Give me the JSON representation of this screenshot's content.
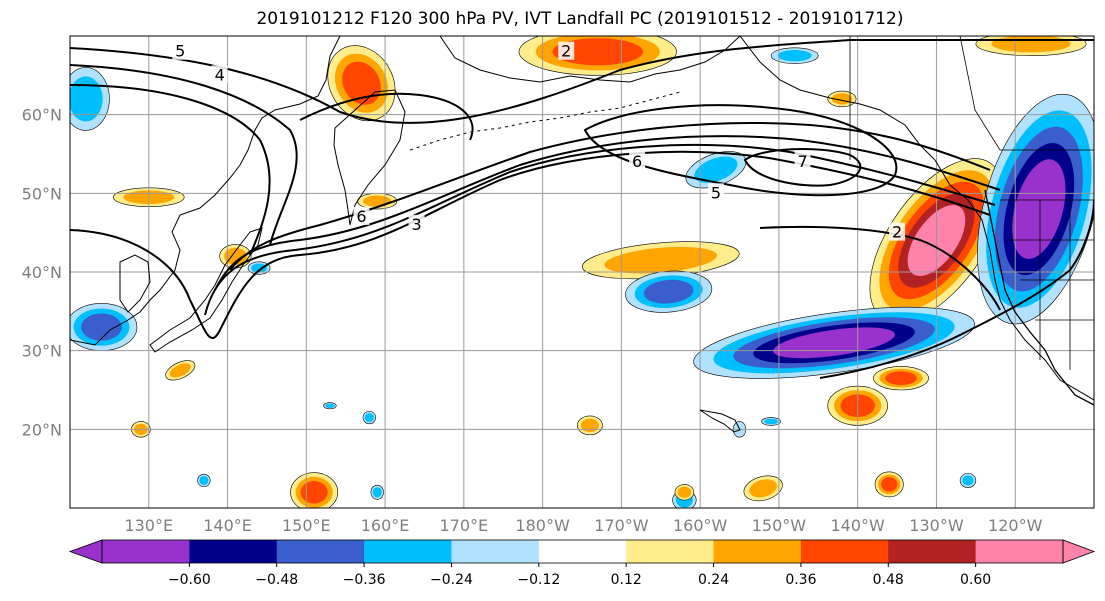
{
  "title": "2019101212 F120 300 hPa PV, IVT Landfall PC (2019101512 - 2019101712)",
  "map": {
    "lon_range": [
      120,
      250
    ],
    "lat_range": [
      10,
      70
    ],
    "lat_ticks": [
      {
        "lat": 20,
        "label": "20°N"
      },
      {
        "lat": 30,
        "label": "30°N"
      },
      {
        "lat": 40,
        "label": "40°N"
      },
      {
        "lat": 50,
        "label": "50°N"
      },
      {
        "lat": 60,
        "label": "60°N"
      }
    ],
    "lon_ticks": [
      {
        "lon": 130,
        "label": "130°E"
      },
      {
        "lon": 140,
        "label": "140°E"
      },
      {
        "lon": 150,
        "label": "150°E"
      },
      {
        "lon": 160,
        "label": "160°E"
      },
      {
        "lon": 170,
        "label": "170°E"
      },
      {
        "lon": 180,
        "label": "180°W"
      },
      {
        "lon": 190,
        "label": "170°W"
      },
      {
        "lon": 200,
        "label": "160°W"
      },
      {
        "lon": 210,
        "label": "150°W"
      },
      {
        "lon": 220,
        "label": "140°W"
      },
      {
        "lon": 230,
        "label": "130°W"
      },
      {
        "lon": 240,
        "label": "120°W"
      }
    ],
    "contour_labels": [
      {
        "text": "5",
        "lon": 134,
        "lat": 68
      },
      {
        "text": "4",
        "lon": 139,
        "lat": 65
      },
      {
        "text": "6",
        "lon": 157,
        "lat": 47
      },
      {
        "text": "3",
        "lon": 164,
        "lat": 46
      },
      {
        "text": "6",
        "lon": 192,
        "lat": 54
      },
      {
        "text": "7",
        "lon": 213,
        "lat": 54
      },
      {
        "text": "5",
        "lon": 202,
        "lat": 50
      },
      {
        "text": "2",
        "lon": 225,
        "lat": 45
      },
      {
        "text": "2",
        "lon": 183,
        "lat": 68
      }
    ],
    "anomalies": [
      {
        "lon": 157,
        "lat": 64,
        "rx": 4,
        "ry": 5,
        "rot": -30,
        "value": 0.42
      },
      {
        "lon": 187,
        "lat": 68,
        "rx": 10,
        "ry": 3,
        "rot": 0,
        "value": 0.4
      },
      {
        "lon": 230,
        "lat": 44,
        "rx": 6,
        "ry": 12,
        "rot": 35,
        "value": 0.65
      },
      {
        "lon": 195,
        "lat": 41.5,
        "rx": 10,
        "ry": 2.2,
        "rot": -5,
        "value": 0.33
      },
      {
        "lon": 217,
        "lat": 31,
        "rx": 18,
        "ry": 3.8,
        "rot": -8,
        "value": -0.62
      },
      {
        "lon": 243,
        "lat": 48,
        "rx": 7,
        "ry": 15,
        "rot": 15,
        "value": -0.65
      },
      {
        "lon": 196,
        "lat": 37.5,
        "rx": 5.5,
        "ry": 2.6,
        "rot": -5,
        "value": -0.42
      },
      {
        "lon": 225.5,
        "lat": 26.5,
        "rx": 3.5,
        "ry": 1.5,
        "rot": 0,
        "value": 0.37
      },
      {
        "lon": 220,
        "lat": 23,
        "rx": 3.8,
        "ry": 2.5,
        "rot": 0,
        "value": 0.42
      },
      {
        "lon": 151,
        "lat": 12,
        "rx": 3,
        "ry": 2.5,
        "rot": 0,
        "value": 0.42
      },
      {
        "lon": 124,
        "lat": 33,
        "rx": 4.5,
        "ry": 3,
        "rot": 0,
        "value": -0.4
      },
      {
        "lon": 224,
        "lat": 13,
        "rx": 1.8,
        "ry": 1.6,
        "rot": 0,
        "value": 0.4
      },
      {
        "lon": 202,
        "lat": 53,
        "rx": 4,
        "ry": 2,
        "rot": -20,
        "value": -0.28
      },
      {
        "lon": 130,
        "lat": 49.5,
        "rx": 4.5,
        "ry": 1.2,
        "rot": 0,
        "value": 0.28
      },
      {
        "lon": 141,
        "lat": 42,
        "rx": 2,
        "ry": 1.5,
        "rot": 0,
        "value": 0.26
      },
      {
        "lon": 159,
        "lat": 49,
        "rx": 2.5,
        "ry": 1,
        "rot": 0,
        "value": 0.26
      },
      {
        "lon": 134,
        "lat": 27.5,
        "rx": 2,
        "ry": 1,
        "rot": -25,
        "value": 0.28
      },
      {
        "lon": 218,
        "lat": 62,
        "rx": 1.8,
        "ry": 1,
        "rot": 0,
        "value": 0.28
      },
      {
        "lon": 242,
        "lat": 69,
        "rx": 7,
        "ry": 1.5,
        "rot": 0,
        "value": 0.28
      },
      {
        "lon": 186,
        "lat": 20.5,
        "rx": 1.6,
        "ry": 1.2,
        "rot": 0,
        "value": 0.28
      },
      {
        "lon": 129,
        "lat": 20,
        "rx": 1.2,
        "ry": 1,
        "rot": 0,
        "value": 0.3
      },
      {
        "lon": 208,
        "lat": 12.5,
        "rx": 2.5,
        "ry": 1.5,
        "rot": -15,
        "value": 0.3
      },
      {
        "lon": 122,
        "lat": 62,
        "rx": 3,
        "ry": 4,
        "rot": 0,
        "value": -0.32
      },
      {
        "lon": 212,
        "lat": 67.5,
        "rx": 3,
        "ry": 1,
        "rot": 0,
        "value": -0.28
      },
      {
        "lon": 144,
        "lat": 40.5,
        "rx": 1.4,
        "ry": 0.8,
        "rot": 0,
        "value": -0.28
      },
      {
        "lon": 137,
        "lat": 13.5,
        "rx": 0.8,
        "ry": 0.8,
        "rot": 0,
        "value": -0.28
      },
      {
        "lon": 159,
        "lat": 12,
        "rx": 0.8,
        "ry": 0.9,
        "rot": 0,
        "value": -0.28
      },
      {
        "lon": 205,
        "lat": 20,
        "rx": 0.8,
        "ry": 1,
        "rot": 0,
        "value": -0.2
      },
      {
        "lon": 209,
        "lat": 21,
        "rx": 1.2,
        "ry": 0.5,
        "rot": 0,
        "value": -0.28
      },
      {
        "lon": 234,
        "lat": 13.5,
        "rx": 1,
        "ry": 0.9,
        "rot": 0,
        "value": -0.28
      },
      {
        "lon": 198,
        "lat": 11,
        "rx": 1.5,
        "ry": 1.3,
        "rot": 0,
        "value": -0.28
      },
      {
        "lon": 153,
        "lat": 23,
        "rx": 0.8,
        "ry": 0.4,
        "rot": 0,
        "value": -0.28
      },
      {
        "lon": 158,
        "lat": 21.5,
        "rx": 0.8,
        "ry": 0.8,
        "rot": 0,
        "value": -0.28
      },
      {
        "lon": 198,
        "lat": 12,
        "rx": 1.2,
        "ry": 1,
        "rot": 0,
        "value": 0.28
      }
    ]
  },
  "colorbar": {
    "colors": [
      "#9932cc",
      "#00008b",
      "#3a5fcd",
      "#00bfff",
      "#b0e2ff",
      "#ffffff",
      "#ffec8b",
      "#ffa500",
      "#ff4500",
      "#b22222",
      "#ff82ab"
    ],
    "boundaries": [
      -0.72,
      -0.6,
      -0.48,
      -0.36,
      -0.24,
      -0.12,
      0.12,
      0.24,
      0.36,
      0.48,
      0.6,
      0.72
    ],
    "tick_labels": [
      {
        "value": -0.6,
        "label": "−0.60"
      },
      {
        "value": -0.48,
        "label": "−0.48"
      },
      {
        "value": -0.36,
        "label": "−0.36"
      },
      {
        "value": -0.24,
        "label": "−0.24"
      },
      {
        "value": -0.12,
        "label": "−0.12"
      },
      {
        "value": 0.12,
        "label": "0.12"
      },
      {
        "value": 0.24,
        "label": "0.24"
      },
      {
        "value": 0.36,
        "label": "0.36"
      },
      {
        "value": 0.48,
        "label": "0.48"
      },
      {
        "value": 0.6,
        "label": "0.60"
      }
    ]
  }
}
